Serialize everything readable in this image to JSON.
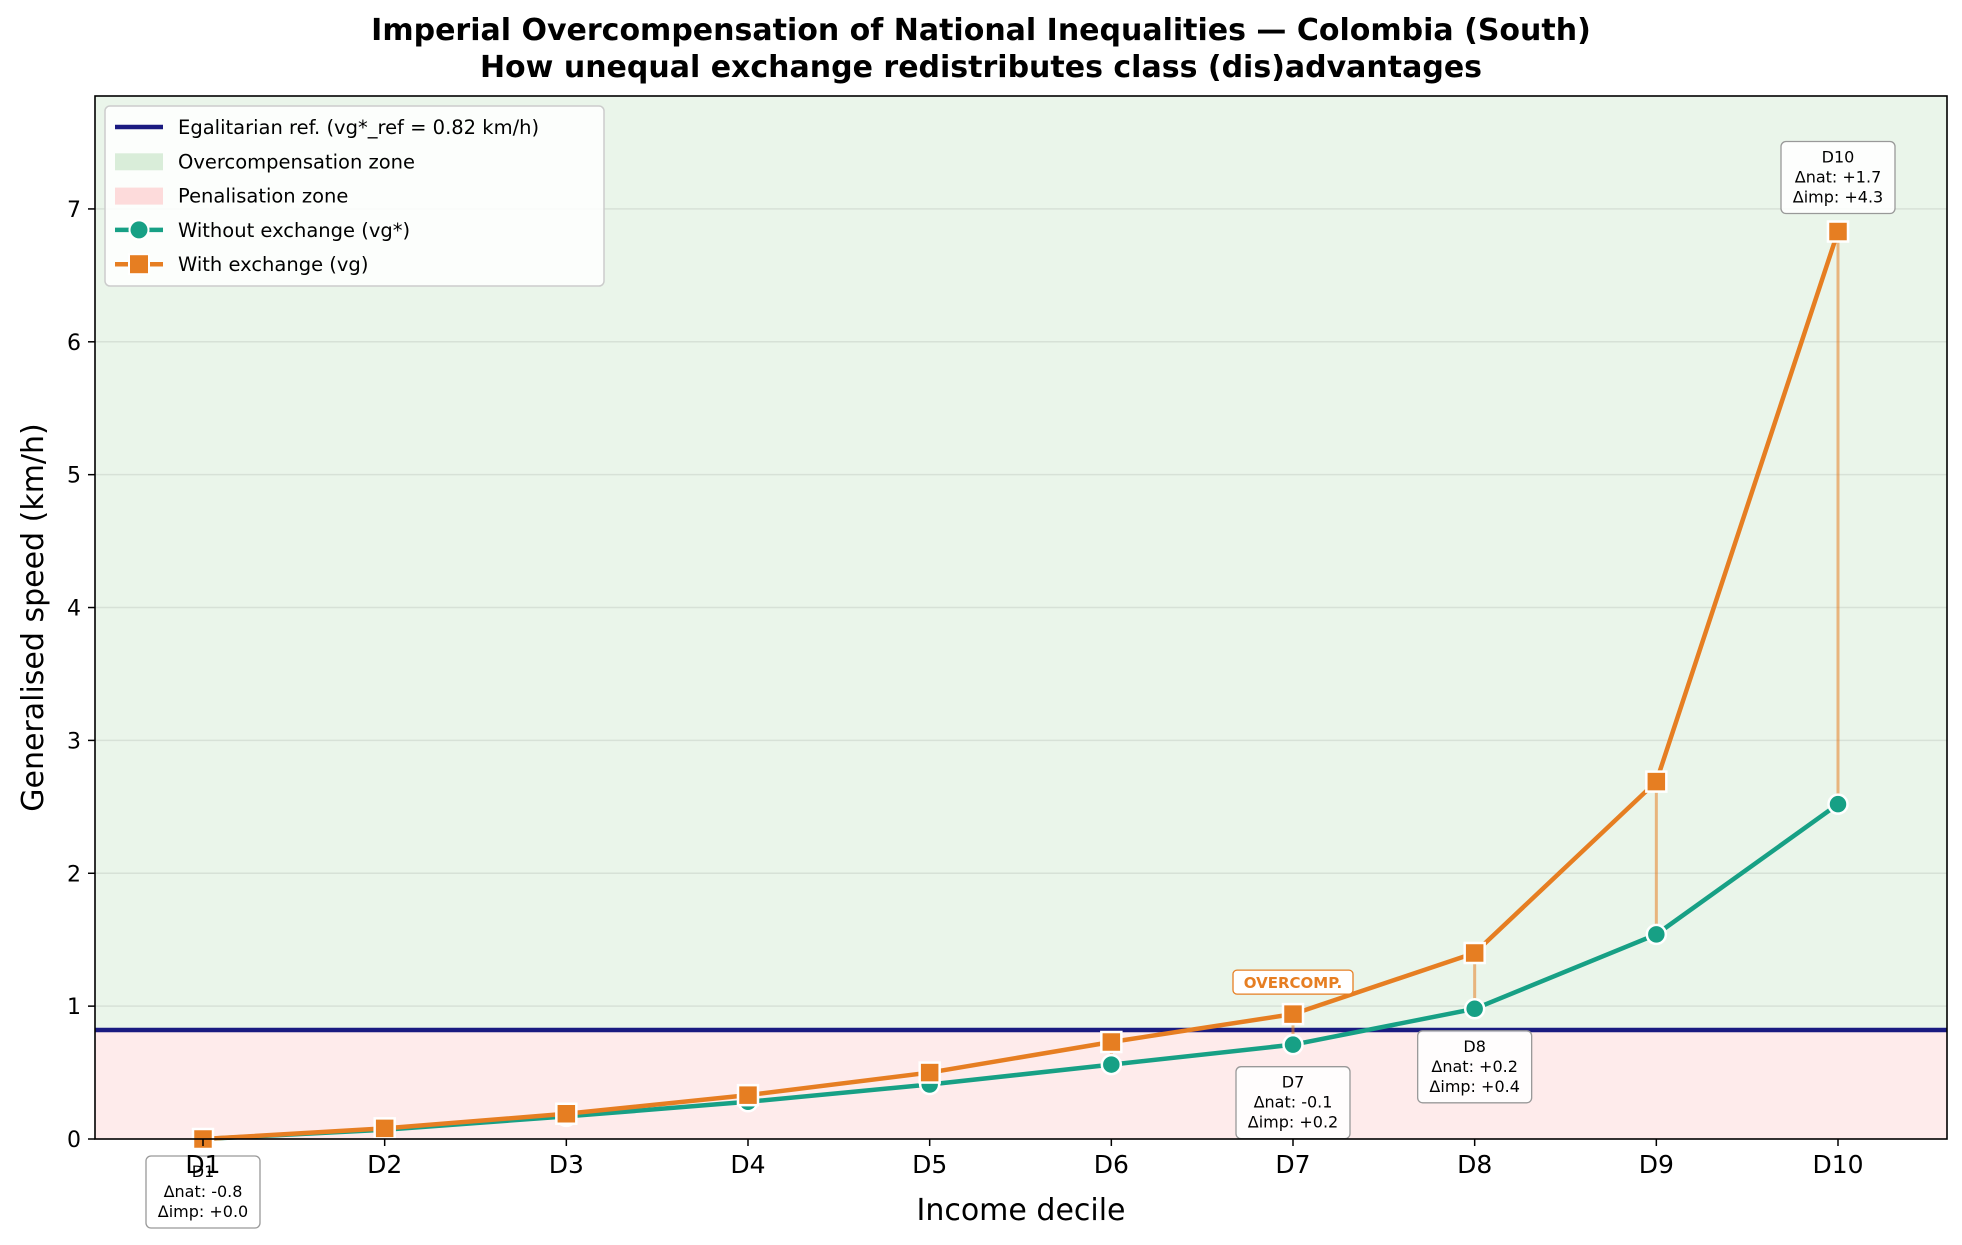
{
  "chart_data": {
    "type": "line",
    "title": "Imperial Overcompensation of National Inequalities — Colombia (South)",
    "subtitle": "How unequal exchange redistributes class (dis)advantages",
    "xlabel": "Income decile",
    "ylabel": "Generalised speed (km/h)",
    "categories": [
      "D1",
      "D2",
      "D3",
      "D4",
      "D5",
      "D6",
      "D7",
      "D8",
      "D9",
      "D10"
    ],
    "ylim": [
      0,
      7.85
    ],
    "yticks": [
      "0",
      "1",
      "2",
      "3",
      "4",
      "5",
      "6",
      "7"
    ],
    "grid": "horizontal",
    "legend_position": "top-left",
    "reference_line": {
      "value": 0.82,
      "label": "Egalitarian ref. (vg*_ref = 0.82 km/h)",
      "color": "#1a1a80"
    },
    "zones": [
      {
        "name": "Overcompensation zone",
        "from": 0.82,
        "to": 7.85,
        "color": "#d5ebd5"
      },
      {
        "name": "Penalisation zone",
        "from": 0,
        "to": 0.82,
        "color": "#fdd7d7"
      }
    ],
    "series": [
      {
        "name": "Without exchange (vg*)",
        "marker": "circle",
        "color": "#17a085",
        "values": [
          0.0,
          0.07,
          0.17,
          0.28,
          0.41,
          0.56,
          0.71,
          0.98,
          1.54,
          2.52
        ]
      },
      {
        "name": "With exchange (vg)",
        "marker": "square",
        "color": "#e67e22",
        "values": [
          0.0,
          0.08,
          0.19,
          0.33,
          0.5,
          0.73,
          0.94,
          1.4,
          2.69,
          6.83
        ]
      }
    ],
    "annotations": [
      {
        "decile": "D1",
        "lines": [
          "D1",
          "Δnat: -0.8",
          "Δimp: +0.0"
        ]
      },
      {
        "decile": "D7",
        "lines": [
          "D7",
          "Δnat: -0.1",
          "Δimp: +0.2"
        ]
      },
      {
        "decile": "D8",
        "lines": [
          "D8",
          "Δnat: +0.2",
          "Δimp: +0.4"
        ]
      },
      {
        "decile": "D10",
        "lines": [
          "D10",
          "Δnat: +1.7",
          "Δimp: +4.3"
        ]
      }
    ],
    "callout": {
      "decile": "D7",
      "text": "OVERCOMP."
    }
  }
}
